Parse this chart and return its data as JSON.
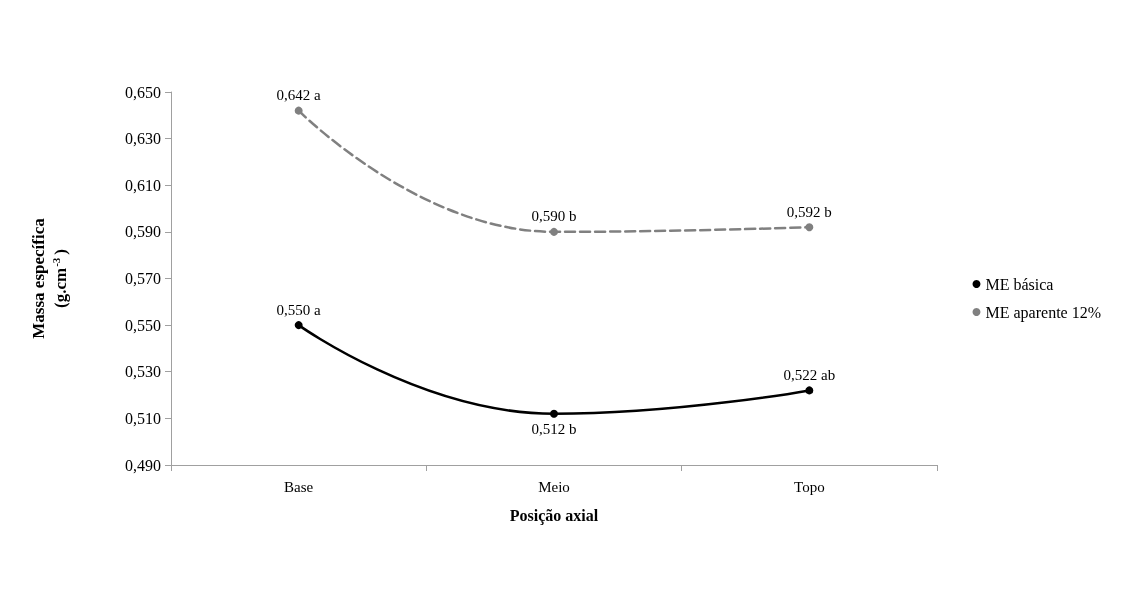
{
  "chart_data": {
    "type": "line",
    "xlabel": "Posição axial",
    "ylabel": "Massa específica\n(g.cm$^{-3}$)",
    "categories": [
      "Base",
      "Meio",
      "Topo"
    ],
    "series": [
      {
        "name": "ME básica",
        "color": "#000000",
        "values": [
          0.55,
          0.512,
          0.522
        ],
        "value_labels": [
          "0,550 a",
          "0,512 b",
          "0,522 ab"
        ],
        "line_style": "solid"
      },
      {
        "name": "ME aparente 12%",
        "color": "#808080",
        "values": [
          0.642,
          0.59,
          0.592
        ],
        "value_labels": [
          "0,642 a",
          "0,590 b",
          "0,592 b"
        ],
        "line_style": "dashed"
      }
    ],
    "ylim": [
      0.49,
      0.65
    ],
    "yticks": [
      {
        "value": 0.49,
        "label": "0,490"
      },
      {
        "value": 0.51,
        "label": "0,510"
      },
      {
        "value": 0.53,
        "label": "0,530"
      },
      {
        "value": 0.55,
        "label": "0,550"
      },
      {
        "value": 0.57,
        "label": "0,570"
      },
      {
        "value": 0.59,
        "label": "0,590"
      },
      {
        "value": 0.61,
        "label": "0,610"
      },
      {
        "value": 0.63,
        "label": "0,630"
      },
      {
        "value": 0.65,
        "label": "0,650"
      }
    ],
    "grid": false,
    "legend": "right",
    "marker": "circle"
  }
}
